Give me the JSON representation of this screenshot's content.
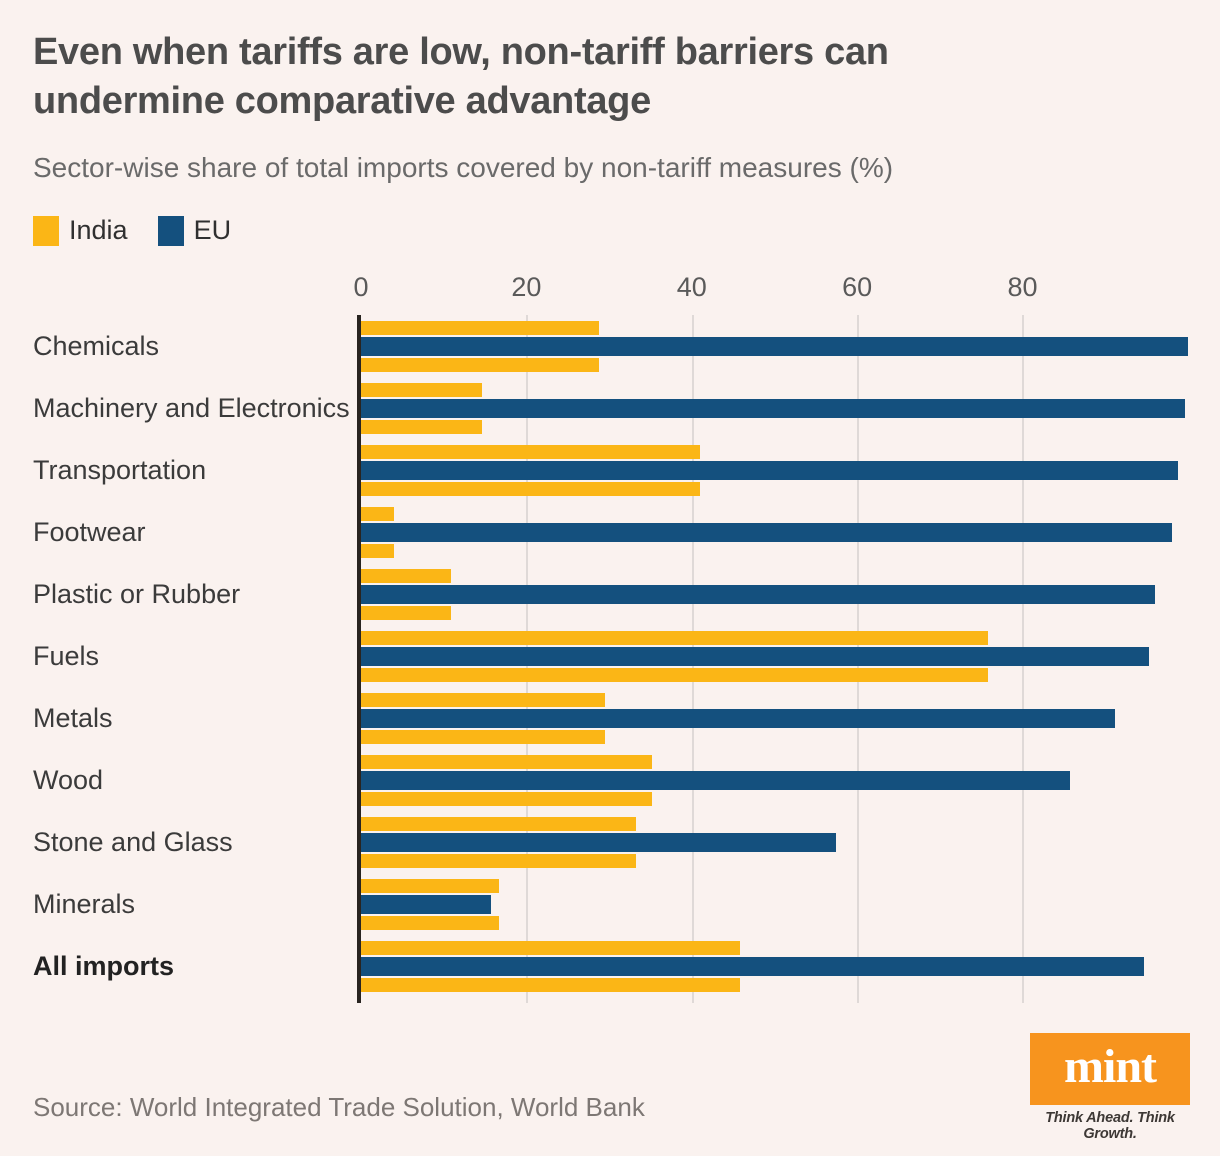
{
  "header": {
    "title": "Even when tariffs are low, non-tariff barriers can\nundermine comparative advantage",
    "subtitle": "Sector-wise share of total imports covered by non-tariff measures (%)"
  },
  "legend": {
    "items": [
      {
        "label": "India",
        "color": "#FBB616"
      },
      {
        "label": "EU",
        "color": "#14507E"
      }
    ]
  },
  "chart_data": {
    "type": "bar",
    "orientation": "horizontal",
    "title": "Even when tariffs are low, non-tariff barriers can undermine comparative advantage",
    "subtitle": "Sector-wise share of total imports covered by non-tariff measures (%)",
    "categories": [
      "Chemicals",
      "Machinery and Electronics",
      "Transportation",
      "Footwear",
      "Plastic or Rubber",
      "Fuels",
      "Metals",
      "Wood",
      "Stone and Glass",
      "Minerals",
      "All imports"
    ],
    "series": [
      {
        "name": "India",
        "values": [
          28.8,
          14.6,
          41.0,
          4.0,
          10.9,
          75.8,
          29.5,
          35.2,
          33.2,
          16.7,
          45.8
        ]
      },
      {
        "name": "EU",
        "values": [
          100.0,
          99.7,
          98.8,
          98.1,
          96.0,
          95.3,
          91.2,
          85.8,
          57.4,
          15.7,
          94.7
        ]
      }
    ],
    "bar_order": [
      "India",
      "EU",
      "India"
    ],
    "emphasis_category": "All imports",
    "x_ticks": [
      0,
      20,
      40,
      60,
      80
    ],
    "xlim": [
      0,
      100.5
    ],
    "grid": "vertical",
    "legend_position": "top-left",
    "colors": {
      "India": "#FBB616",
      "EU": "#14507E"
    }
  },
  "footer": {
    "source": "Source: World Integrated Trade Solution, World Bank",
    "logo_text": "mint",
    "logo_color": "#F7941E",
    "tagline": "Think Ahead. Think Growth."
  }
}
